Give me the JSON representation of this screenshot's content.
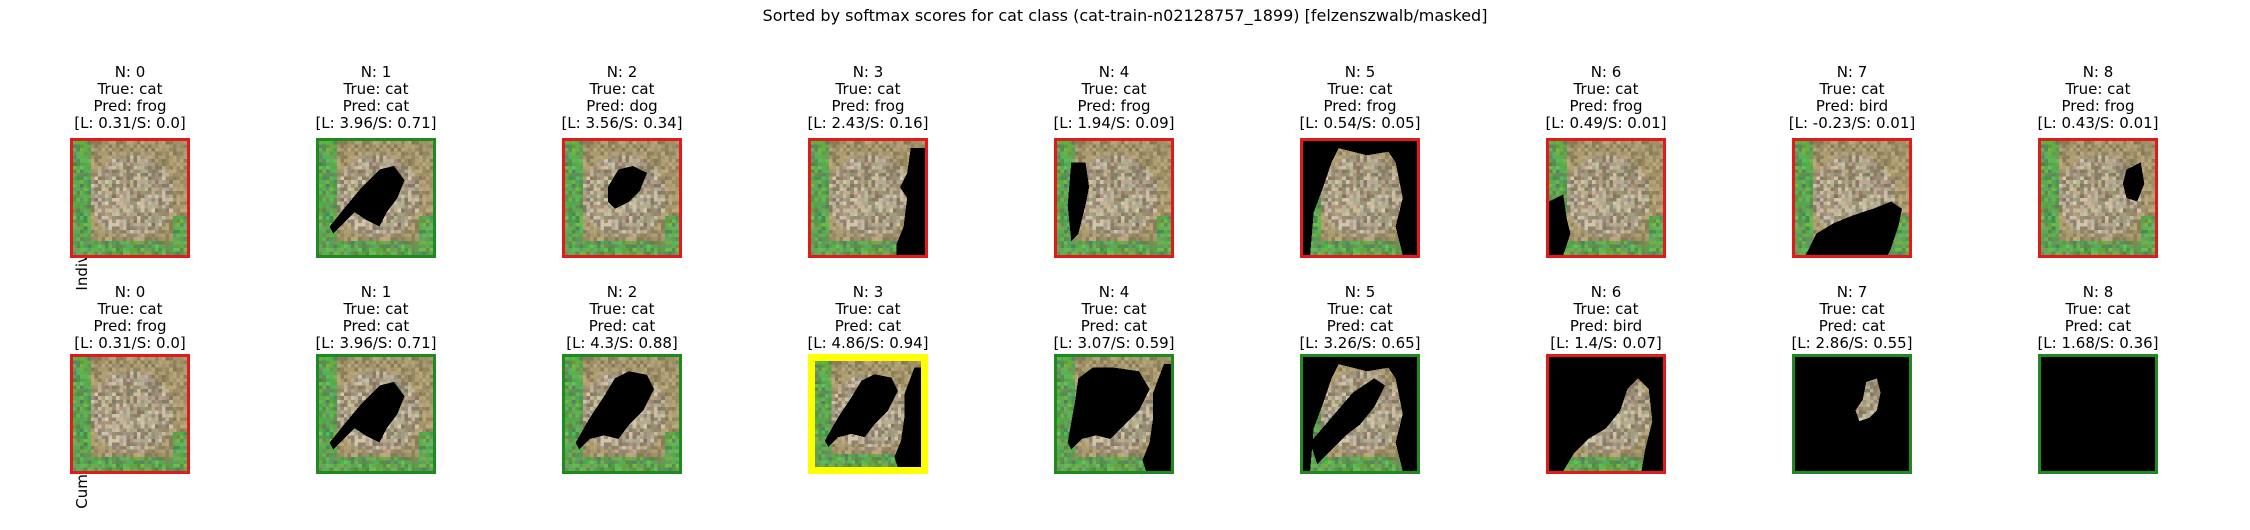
{
  "title": "Sorted by softmax scores for cat class (cat-train-n02128757_1899) [felzenszwalb/masked]",
  "colors": {
    "wrong": "#e31a1c",
    "correct": "#1f8a1f",
    "best": "#ffff00",
    "mask": "#000000"
  },
  "rows": [
    {
      "label": "Individual Segments",
      "cells": [
        {
          "n": "N: 0",
          "true": "True: cat",
          "pred": "Pred: frog",
          "score": "[L: 0.31/S: 0.0]",
          "border": "wrong",
          "mask": "none"
        },
        {
          "n": "N: 1",
          "true": "True: cat",
          "pred": "Pred: cat",
          "score": "[L: 3.96/S: 0.71]",
          "border": "correct",
          "mask": "ind-1"
        },
        {
          "n": "N: 2",
          "true": "True: cat",
          "pred": "Pred: dog",
          "score": "[L: 3.56/S: 0.34]",
          "border": "wrong",
          "mask": "ind-2"
        },
        {
          "n": "N: 3",
          "true": "True: cat",
          "pred": "Pred: frog",
          "score": "[L: 2.43/S: 0.16]",
          "border": "wrong",
          "mask": "ind-3"
        },
        {
          "n": "N: 4",
          "true": "True: cat",
          "pred": "Pred: frog",
          "score": "[L: 1.94/S: 0.09]",
          "border": "wrong",
          "mask": "ind-4"
        },
        {
          "n": "N: 5",
          "true": "True: cat",
          "pred": "Pred: frog",
          "score": "[L: 0.54/S: 0.05]",
          "border": "wrong",
          "mask": "ind-5"
        },
        {
          "n": "N: 6",
          "true": "True: cat",
          "pred": "Pred: frog",
          "score": "[L: 0.49/S: 0.01]",
          "border": "wrong",
          "mask": "ind-6"
        },
        {
          "n": "N: 7",
          "true": "True: cat",
          "pred": "Pred: bird",
          "score": "[L: -0.23/S: 0.01]",
          "border": "wrong",
          "mask": "ind-7"
        },
        {
          "n": "N: 8",
          "true": "True: cat",
          "pred": "Pred: frog",
          "score": "[L: 0.43/S: 0.01]",
          "border": "wrong",
          "mask": "ind-8"
        }
      ]
    },
    {
      "label": "Cumulative Image",
      "cells": [
        {
          "n": "N: 0",
          "true": "True: cat",
          "pred": "Pred: frog",
          "score": "[L: 0.31/S: 0.0]",
          "border": "wrong",
          "mask": "none"
        },
        {
          "n": "N: 1",
          "true": "True: cat",
          "pred": "Pred: cat",
          "score": "[L: 3.96/S: 0.71]",
          "border": "correct",
          "mask": "cum-1"
        },
        {
          "n": "N: 2",
          "true": "True: cat",
          "pred": "Pred: cat",
          "score": "[L: 4.3/S: 0.88]",
          "border": "correct",
          "mask": "cum-2"
        },
        {
          "n": "N: 3",
          "true": "True: cat",
          "pred": "Pred: cat",
          "score": "[L: 4.86/S: 0.94]",
          "border": "best",
          "mask": "cum-3"
        },
        {
          "n": "N: 4",
          "true": "True: cat",
          "pred": "Pred: cat",
          "score": "[L: 3.07/S: 0.59]",
          "border": "correct",
          "mask": "cum-4"
        },
        {
          "n": "N: 5",
          "true": "True: cat",
          "pred": "Pred: cat",
          "score": "[L: 3.26/S: 0.65]",
          "border": "correct",
          "mask": "cum-5"
        },
        {
          "n": "N: 6",
          "true": "True: cat",
          "pred": "Pred: bird",
          "score": "[L: 1.4/S: 0.07]",
          "border": "wrong",
          "mask": "cum-6"
        },
        {
          "n": "N: 7",
          "true": "True: cat",
          "pred": "Pred: cat",
          "score": "[L: 2.86/S: 0.55]",
          "border": "correct",
          "mask": "cum-7"
        },
        {
          "n": "N: 8",
          "true": "True: cat",
          "pred": "Pred: cat",
          "score": "[L: 1.68/S: 0.36]",
          "border": "correct",
          "mask": "cum-8"
        }
      ]
    }
  ]
}
